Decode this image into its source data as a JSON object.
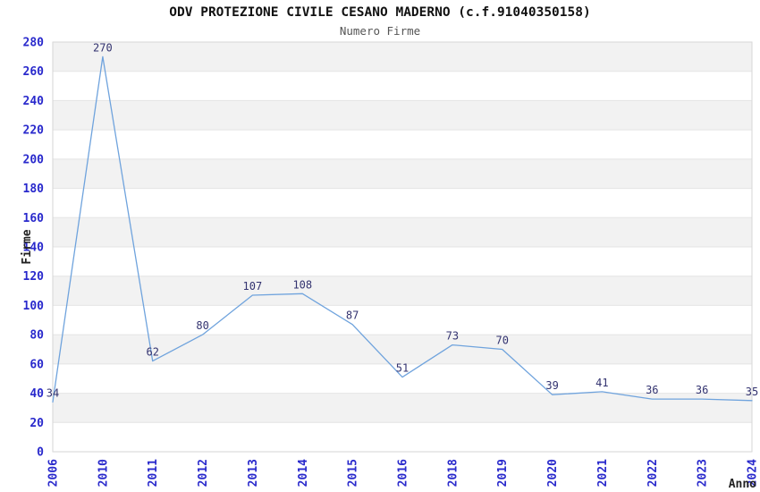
{
  "page": {
    "background": "#ffffff"
  },
  "chart_data": {
    "type": "line",
    "title": "ODV PROTEZIONE CIVILE CESANO MADERNO (c.f.91040350158)",
    "subtitle": "Numero Firme",
    "xlabel": "Anno",
    "ylabel": "Firme",
    "categories": [
      "2006",
      "2010",
      "2011",
      "2012",
      "2013",
      "2014",
      "2015",
      "2016",
      "2018",
      "2019",
      "2020",
      "2021",
      "2022",
      "2023",
      "2024"
    ],
    "values": [
      34,
      270,
      62,
      80,
      107,
      108,
      87,
      51,
      73,
      70,
      39,
      41,
      36,
      36,
      35
    ],
    "ylim": [
      0,
      280
    ],
    "ytick_step": 20,
    "grid": true,
    "legend": "none",
    "band_fill": "alternating horizontal gray bands every 20 units",
    "x_tick_rotation": -90,
    "colors": {
      "line": "#6fa3dd",
      "tick_label": "#2929cc",
      "point_label": "#333370",
      "band": "#f2f2f2",
      "gridline": "#e4e4e4",
      "plot_border": "#d6d6d6",
      "title": "#111111",
      "subtitle": "#555555",
      "axis_title": "#222222"
    }
  }
}
